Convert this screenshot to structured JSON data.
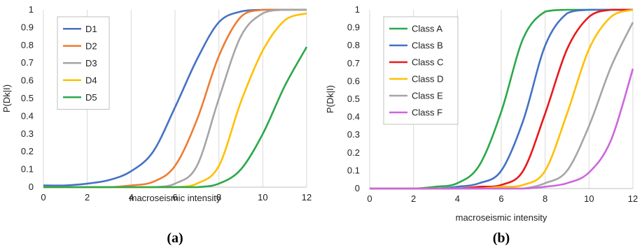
{
  "chart_data": [
    {
      "type": "line",
      "panel_label": "(a)",
      "xlabel": "macroseismic intensity",
      "ylabel": "P(Dk|I)",
      "xlim": [
        0,
        12
      ],
      "ylim": [
        0,
        1
      ],
      "x_ticks": [
        0,
        2,
        4,
        6,
        8,
        10,
        12
      ],
      "y_ticks": [
        0,
        0.1,
        0.2,
        0.3,
        0.4,
        0.5,
        0.6,
        0.7,
        0.8,
        0.9,
        1
      ],
      "grid": "vertical",
      "legend_position": "top-left",
      "x": [
        0,
        1,
        2,
        3,
        4,
        5,
        6,
        7,
        8,
        9,
        10,
        11,
        12
      ],
      "series": [
        {
          "name": "D1",
          "color": "#4472C4",
          "values": [
            0.01,
            0.01,
            0.02,
            0.04,
            0.09,
            0.2,
            0.45,
            0.72,
            0.93,
            0.99,
            1.0,
            1.0,
            1.0
          ]
        },
        {
          "name": "D2",
          "color": "#ED7D31",
          "values": [
            0.0,
            0.0,
            0.0,
            0.0,
            0.01,
            0.03,
            0.12,
            0.38,
            0.74,
            0.96,
            1.0,
            1.0,
            1.0
          ]
        },
        {
          "name": "D3",
          "color": "#A5A5A5",
          "values": [
            0.0,
            0.0,
            0.0,
            0.0,
            0.0,
            0.0,
            0.02,
            0.12,
            0.5,
            0.85,
            0.98,
            1.0,
            1.0
          ]
        },
        {
          "name": "D4",
          "color": "#FFC000",
          "values": [
            0.0,
            0.0,
            0.0,
            0.0,
            0.0,
            0.0,
            0.0,
            0.02,
            0.12,
            0.48,
            0.77,
            0.94,
            0.98
          ]
        },
        {
          "name": "D5",
          "color": "#2BA84A",
          "values": [
            0.0,
            0.0,
            0.0,
            0.0,
            0.0,
            0.0,
            0.0,
            0.0,
            0.02,
            0.1,
            0.3,
            0.57,
            0.79
          ]
        }
      ]
    },
    {
      "type": "line",
      "panel_label": "(b)",
      "xlabel": "macroseismic intensity",
      "ylabel": "P(Dk|I)",
      "xlim": [
        0,
        12
      ],
      "ylim": [
        0,
        1
      ],
      "x_ticks": [
        0,
        2,
        4,
        6,
        8,
        10,
        12
      ],
      "y_ticks": [
        0,
        0.1,
        0.2,
        0.3,
        0.4,
        0.5,
        0.6,
        0.7,
        0.8,
        0.9,
        1
      ],
      "grid": "vertical",
      "legend_position": "top-left",
      "x": [
        0,
        1,
        2,
        3,
        4,
        5,
        6,
        7,
        8,
        9,
        10,
        11,
        12
      ],
      "series": [
        {
          "name": "Class A",
          "color": "#2BA84A",
          "values": [
            0.0,
            0.0,
            0.0,
            0.01,
            0.03,
            0.13,
            0.43,
            0.84,
            0.99,
            1.0,
            1.0,
            1.0,
            1.0
          ]
        },
        {
          "name": "Class B",
          "color": "#4472C4",
          "values": [
            0.0,
            0.0,
            0.0,
            0.0,
            0.01,
            0.03,
            0.1,
            0.38,
            0.8,
            0.98,
            1.0,
            1.0,
            1.0
          ]
        },
        {
          "name": "Class C",
          "color": "#E8191C",
          "values": [
            0.0,
            0.0,
            0.0,
            0.0,
            0.0,
            0.01,
            0.02,
            0.1,
            0.42,
            0.78,
            0.96,
            1.0,
            1.0
          ]
        },
        {
          "name": "Class D",
          "color": "#FFC000",
          "values": [
            0.0,
            0.0,
            0.0,
            0.0,
            0.0,
            0.0,
            0.01,
            0.02,
            0.1,
            0.42,
            0.78,
            0.96,
            1.0
          ]
        },
        {
          "name": "Class E",
          "color": "#A5A5A5",
          "values": [
            0.0,
            0.0,
            0.0,
            0.0,
            0.0,
            0.0,
            0.0,
            0.0,
            0.03,
            0.1,
            0.35,
            0.68,
            0.93
          ]
        },
        {
          "name": "Class F",
          "color": "#CC66DD",
          "values": [
            0.0,
            0.0,
            0.0,
            0.0,
            0.0,
            0.0,
            0.0,
            0.0,
            0.01,
            0.03,
            0.09,
            0.27,
            0.67
          ]
        }
      ]
    }
  ]
}
